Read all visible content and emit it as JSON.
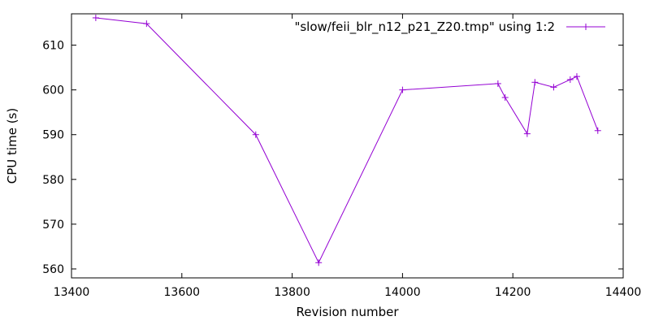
{
  "chart_data": {
    "type": "line",
    "title": "",
    "xlabel": "Revision number",
    "ylabel": "CPU time (s)",
    "xlim": [
      13400,
      14400
    ],
    "ylim": [
      558,
      617
    ],
    "grid": false,
    "legend_position": "top-right",
    "x_ticks": [
      13400,
      13600,
      13800,
      14000,
      14200,
      14400
    ],
    "y_ticks": [
      560,
      570,
      580,
      590,
      600,
      610
    ],
    "series": [
      {
        "name": "\"slow/feii_blr_n12_p21_Z20.tmp\" using 1:2",
        "color": "#9400d3",
        "marker": "plus",
        "x": [
          13444,
          13536,
          13734,
          13848,
          14000,
          14173,
          14186,
          14226,
          14240,
          14274,
          14304,
          14316,
          14354
        ],
        "y": [
          616.1,
          614.8,
          590.0,
          561.4,
          600.0,
          601.4,
          598.3,
          590.2,
          601.7,
          600.6,
          602.3,
          603.0,
          590.9
        ]
      }
    ]
  }
}
